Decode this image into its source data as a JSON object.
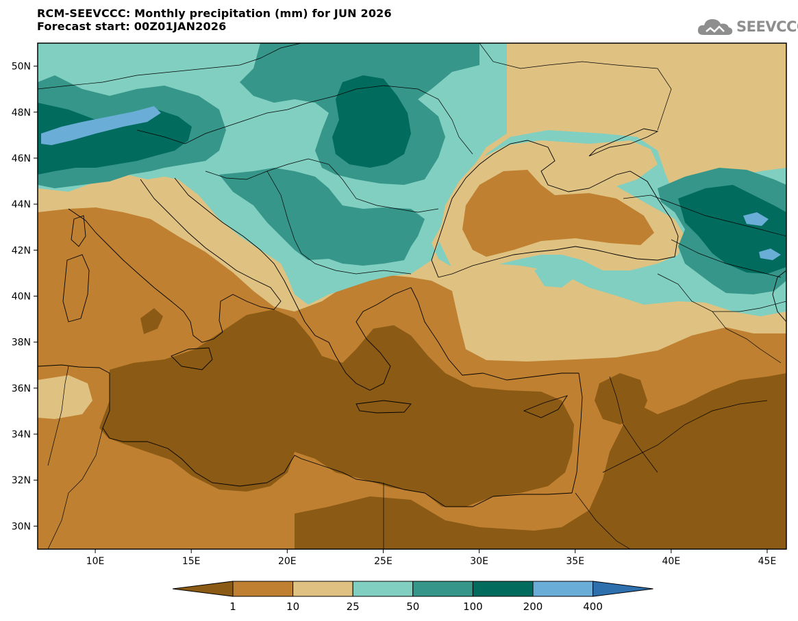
{
  "title": {
    "line1": "RCM-SEEVCCC: Monthly precipitation (mm) for JUN 2026",
    "line2": "Forecast start: 00Z01JAN2026"
  },
  "logo": {
    "text": "SEEVCCC",
    "icon": "cloud-logo-icon"
  },
  "map": {
    "lat_labels": [
      "50N",
      "48N",
      "46N",
      "44N",
      "42N",
      "40N",
      "38N",
      "36N",
      "34N",
      "32N",
      "30N"
    ],
    "lon_labels": [
      "10E",
      "15E",
      "20E",
      "25E",
      "30E",
      "35E",
      "40E",
      "45E"
    ],
    "lat_range": [
      29,
      51
    ],
    "lon_range": [
      7,
      46
    ]
  },
  "legend": {
    "labels": [
      "1",
      "10",
      "25",
      "50",
      "100",
      "200",
      "400"
    ],
    "colors": [
      "#8b5a14",
      "#bf8131",
      "#dfc282",
      "#80cfc0",
      "#36968a",
      "#016b5e",
      "#6aadd6",
      "#2e6fae"
    ]
  }
}
